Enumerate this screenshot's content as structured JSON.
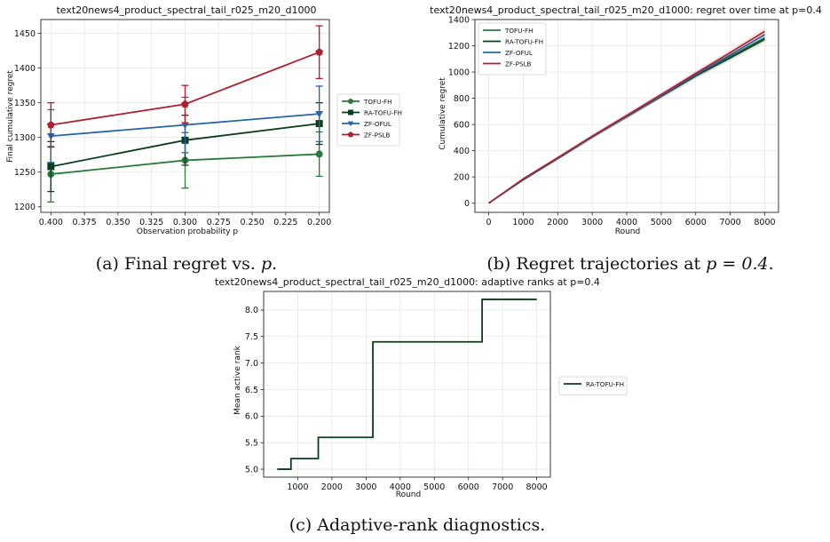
{
  "chart_data": [
    {
      "type": "line",
      "title": "text20news4_product_spectral_tail_r025_m20_d1000",
      "xlabel": "Observation probability p",
      "ylabel": "Final cumulative regret",
      "x": [
        0.4,
        0.3,
        0.2
      ],
      "xlim": [
        0.4075,
        0.1925
      ],
      "ylim": [
        1192,
        1470
      ],
      "x_ticks": [
        0.4,
        0.375,
        0.35,
        0.325,
        0.3,
        0.275,
        0.25,
        0.225,
        0.2
      ],
      "x_tick_labels": [
        "0.400",
        "0.375",
        "0.350",
        "0.325",
        "0.300",
        "0.275",
        "0.250",
        "0.225",
        "0.200"
      ],
      "y_ticks": [
        1200,
        1250,
        1300,
        1350,
        1400,
        1450
      ],
      "y_tick_labels": [
        "1200",
        "1250",
        "1300",
        "1350",
        "1400",
        "1450"
      ],
      "grid": true,
      "legend": "outside-right",
      "series": [
        {
          "name": "TOFU-FH",
          "color": "#2a7a3e",
          "marker": "circle",
          "values": [
            1247,
            1267,
            1276
          ],
          "error": [
            40,
            40,
            32
          ]
        },
        {
          "name": "RA-TOFU-FH",
          "color": "#0c3d1f",
          "marker": "square",
          "values": [
            1258,
            1296,
            1320
          ],
          "error": [
            36,
            36,
            30
          ]
        },
        {
          "name": "ZF-OFUL",
          "color": "#2864a8",
          "marker": "triangle-down",
          "values": [
            1302,
            1318,
            1334
          ],
          "error": [
            38,
            40,
            40
          ]
        },
        {
          "name": "ZF-PSLB",
          "color": "#b01f2e",
          "marker": "pentagon",
          "values": [
            1318,
            1348,
            1423
          ],
          "error": [
            32,
            27,
            38
          ]
        }
      ]
    },
    {
      "type": "line",
      "title": "text20news4_product_spectral_tail_r025_m20_d1000: regret over time at p=0.4",
      "xlabel": "Round",
      "ylabel": "Cumulative regret",
      "xlim": [
        -400,
        8400
      ],
      "ylim": [
        -70,
        1400
      ],
      "x_ticks": [
        0,
        1000,
        2000,
        3000,
        4000,
        5000,
        6000,
        7000,
        8000
      ],
      "x_tick_labels": [
        "0",
        "1000",
        "2000",
        "3000",
        "4000",
        "5000",
        "6000",
        "7000",
        "8000"
      ],
      "y_ticks": [
        0,
        200,
        400,
        600,
        800,
        1000,
        1200,
        1400
      ],
      "y_tick_labels": [
        "0",
        "200",
        "400",
        "600",
        "800",
        "1000",
        "1200",
        "1400"
      ],
      "grid": true,
      "legend": "upper-left",
      "series": [
        {
          "name": "TOFU-FH",
          "color": "#2a7a3e",
          "x": [
            0,
            1000,
            2000,
            3000,
            4000,
            5000,
            6000,
            7000,
            8000
          ],
          "values": [
            0,
            185,
            345,
            508,
            662,
            818,
            975,
            1118,
            1260
          ]
        },
        {
          "name": "RA-TOFU-FH",
          "color": "#0c3d1f",
          "x": [
            0,
            1000,
            2000,
            3000,
            4000,
            5000,
            6000,
            7000,
            8000
          ],
          "values": [
            0,
            178,
            340,
            505,
            660,
            815,
            970,
            1108,
            1250
          ]
        },
        {
          "name": "ZF-OFUL",
          "color": "#2864a8",
          "x": [
            0,
            1000,
            2000,
            3000,
            4000,
            5000,
            6000,
            7000,
            8000
          ],
          "values": [
            0,
            180,
            342,
            506,
            663,
            820,
            980,
            1130,
            1285
          ]
        },
        {
          "name": "ZF-PSLB",
          "color": "#b01f2e",
          "x": [
            0,
            1000,
            2000,
            3000,
            4000,
            5000,
            6000,
            7000,
            8000
          ],
          "values": [
            0,
            184,
            346,
            510,
            668,
            828,
            990,
            1148,
            1310
          ]
        }
      ]
    },
    {
      "type": "line",
      "title": "text20news4_product_spectral_tail_r025_m20_d1000: adaptive ranks at p=0.4",
      "xlabel": "Round",
      "ylabel": "Mean active rank",
      "xlim": [
        0,
        8400
      ],
      "ylim": [
        4.85,
        8.35
      ],
      "x_ticks": [
        1000,
        2000,
        3000,
        4000,
        5000,
        6000,
        7000,
        8000
      ],
      "x_tick_labels": [
        "1000",
        "2000",
        "3000",
        "4000",
        "5000",
        "6000",
        "7000",
        "8000"
      ],
      "y_ticks": [
        5.0,
        5.5,
        6.0,
        6.5,
        7.0,
        7.5,
        8.0
      ],
      "y_tick_labels": [
        "5.0",
        "5.5",
        "6.0",
        "6.5",
        "7.0",
        "7.5",
        "8.0"
      ],
      "grid": true,
      "legend": "outside-right",
      "series": [
        {
          "name": "RA-TOFU-FH",
          "color": "#0c3d1f",
          "step": true,
          "x": [
            400,
            800,
            800,
            1600,
            1600,
            3200,
            3200,
            6400,
            6400,
            8000
          ],
          "values": [
            5.0,
            5.0,
            5.2,
            5.2,
            5.6,
            5.6,
            7.4,
            7.4,
            8.2,
            8.2
          ]
        }
      ]
    }
  ],
  "captions": {
    "a_prefix": "(a) Final regret vs. ",
    "a_var": "p",
    "a_suffix": ".",
    "b_prefix": "(b) Regret trajectories at ",
    "b_math": "p = 0.4",
    "b_suffix": ".",
    "c": "(c) Adaptive-rank diagnostics."
  }
}
